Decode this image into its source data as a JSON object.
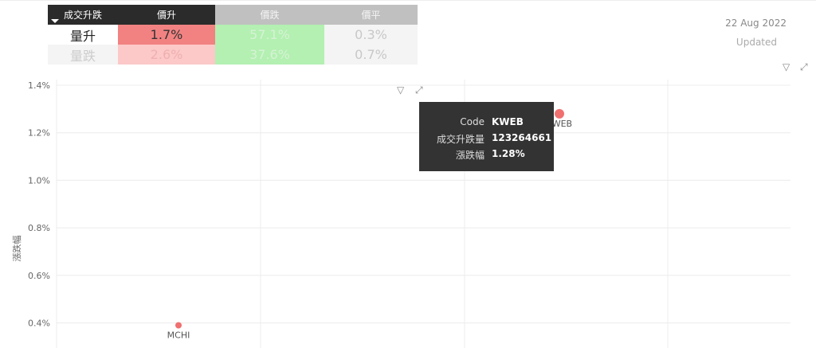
{
  "matrix": {
    "headers": [
      "成交升跌",
      "價升",
      "價跌",
      "價平"
    ],
    "rows": [
      {
        "label": "量升",
        "values": [
          "1.7%",
          "57.1%",
          "0.3%"
        ]
      },
      {
        "label": "量跌",
        "values": [
          "2.6%",
          "37.6%",
          "0.7%"
        ]
      }
    ],
    "colors": {
      "up_strong": "#f28282",
      "up_light": "#fcc8c8",
      "down": "#b3f0b1",
      "flat": "#f4f4f4"
    }
  },
  "date": "22 Aug 2022",
  "updated": "Updated",
  "icons": [
    "filter-icon",
    "focus-mode-icon"
  ],
  "tooltip": {
    "rows": [
      {
        "k": "Code",
        "v": "KWEB"
      },
      {
        "k": "成交升跌量",
        "v": "123264661"
      },
      {
        "k": "漲跌幅",
        "v": "1.28%"
      }
    ]
  },
  "chart_data": {
    "type": "scatter",
    "ylabel": "漲跌幅",
    "xlabel": "",
    "yticks": [
      "1.4%",
      "1.2%",
      "1.0%",
      "0.8%",
      "0.6%",
      "0.4%"
    ],
    "ylim": [
      0.29,
      1.4
    ],
    "grid": true,
    "point_color": "#f07070",
    "points": [
      {
        "label": "KWEB",
        "x": 123264661,
        "y": 1.28
      },
      {
        "label": "MCHI",
        "x": null,
        "y": 0.39
      }
    ]
  }
}
